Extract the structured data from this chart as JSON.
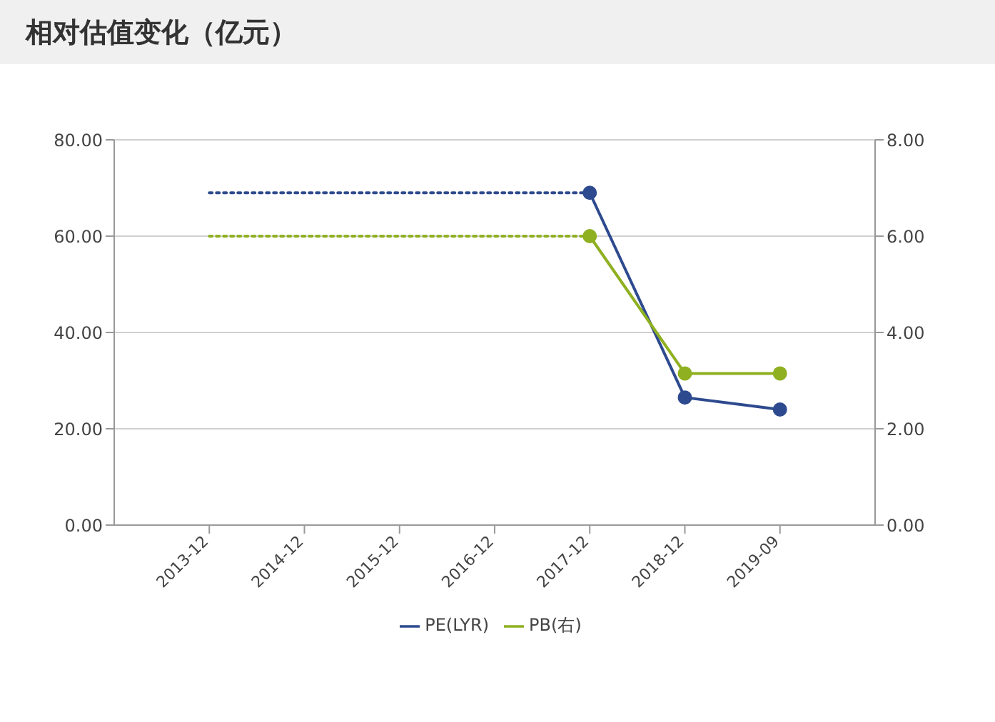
{
  "chart_data": {
    "type": "line",
    "title": "相对估值变化（亿元）",
    "categories": [
      "2013-12",
      "2014-12",
      "2015-12",
      "2016-12",
      "2017-12",
      "2018-12",
      "2019-09"
    ],
    "series": [
      {
        "color": "#2e4a8f",
        "line_style": "dotted",
        "marker": "none",
        "values": [
          69,
          69,
          69,
          69,
          69,
          null,
          null
        ]
      },
      {
        "color": "#8fb020",
        "line_style": "dotted",
        "marker": "none",
        "axis": "y2",
        "values": [
          6.0,
          6.0,
          6.0,
          6.0,
          6.0,
          null,
          null
        ]
      },
      {
        "name": "PE(LYR)",
        "color": "#2e4a8f",
        "line_style": "solid",
        "marker": "circle",
        "values": [
          null,
          null,
          null,
          null,
          69,
          26.5,
          24
        ]
      },
      {
        "name": "PB(右)",
        "color": "#8fb020",
        "line_style": "solid",
        "marker": "circle",
        "axis": "y2",
        "values": [
          null,
          null,
          null,
          null,
          6.0,
          3.15,
          3.15
        ]
      }
    ],
    "ylim": [
      0,
      80
    ],
    "yticks": [
      {
        "value": 0,
        "label": "0.00"
      },
      {
        "value": 20,
        "label": "20.00"
      },
      {
        "value": 40,
        "label": "40.00"
      },
      {
        "value": 60,
        "label": "60.00"
      },
      {
        "value": 80,
        "label": "80.00"
      }
    ],
    "y2lim": [
      0,
      8
    ],
    "y2ticks": [
      {
        "value": 0,
        "label": "0.00"
      },
      {
        "value": 2,
        "label": "2.00"
      },
      {
        "value": 4,
        "label": "4.00"
      },
      {
        "value": 6,
        "label": "6.00"
      },
      {
        "value": 8,
        "label": "8.00"
      }
    ],
    "grid": "y",
    "legend": "bottom"
  }
}
